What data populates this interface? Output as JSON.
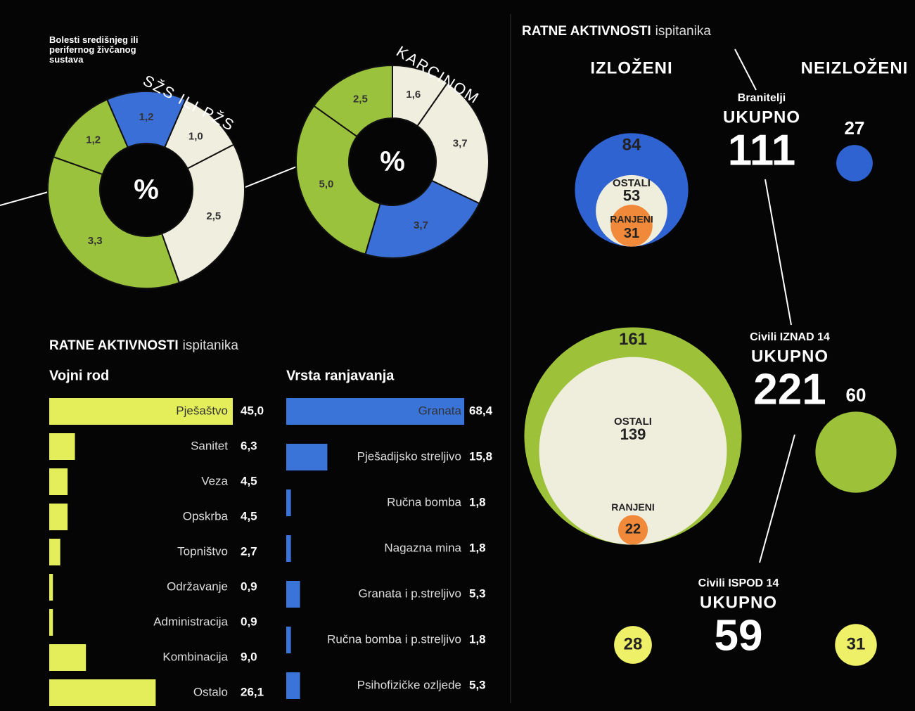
{
  "chart_data": [
    {
      "type": "donut",
      "annotation": "Bolesti središnjeg ili perifernog živčanog sustava",
      "title": "SŽS ILI PŽS",
      "center_label": "%",
      "values": [
        1.2,
        1.0,
        2.5,
        3.3,
        1.2
      ],
      "value_labels": [
        "1,2",
        "1,0",
        "2,5",
        "3,3",
        "1,2"
      ],
      "colors": [
        "#3a6fd8",
        "#f0eedf",
        "#f0eedf",
        "#9bc23c",
        "#9bc23c"
      ]
    },
    {
      "type": "donut",
      "title": "KARCINOM",
      "center_label": "%",
      "values": [
        1.6,
        3.7,
        3.7,
        5.0,
        2.5
      ],
      "value_labels": [
        "1,6",
        "3,7",
        "3,7",
        "5,0",
        "2,5"
      ],
      "colors": [
        "#f0eedf",
        "#f0eedf",
        "#3a6fd8",
        "#9bc23c",
        "#9bc23c"
      ]
    },
    {
      "type": "bar",
      "title": "RATNE AKTIVNOSTI",
      "subtitle": "ispitanika",
      "heading": "Vojni rod",
      "categories": [
        "Pješaštvo",
        "Sanitet",
        "Veza",
        "Opskrba",
        "Topništvo",
        "Održavanje",
        "Administracija",
        "Kombinacija",
        "Ostalo"
      ],
      "values": [
        45.0,
        6.3,
        4.5,
        4.5,
        2.7,
        0.9,
        0.9,
        9.0,
        26.1
      ],
      "value_labels": [
        "45,0",
        "6,3",
        "4,5",
        "4,5",
        "2,7",
        "0,9",
        "0,9",
        "9,0",
        "26,1"
      ],
      "color": "#e4ee5a"
    },
    {
      "type": "bar",
      "heading": "Vrsta ranjavanja",
      "categories": [
        "Granata",
        "Pješadijsko streljivo",
        "Ručna bomba",
        "Nagazna mina",
        "Granata i p.streljivo",
        "Ručna bomba i p.streljivo",
        "Psihofizičke ozljede"
      ],
      "values": [
        68.4,
        15.8,
        1.8,
        1.8,
        5.3,
        1.8,
        5.3
      ],
      "value_labels": [
        "68,4",
        "15,8",
        "1,8",
        "1,8",
        "5,3",
        "1,8",
        "5,3"
      ],
      "color": "#3a74d8"
    },
    {
      "type": "bubble",
      "title": "RATNE AKTIVNOSTI",
      "subtitle": "ispitanika",
      "column_labels": [
        "IZLOŽENI",
        "NEIZLOŽENI"
      ],
      "others_color": "#efeddc",
      "wounded_color": "#f0893a",
      "groups": [
        {
          "name": "Branitelji",
          "total_label": "UKUPNO",
          "total": 111,
          "exposed": 84,
          "others_label": "OSTALI",
          "others": 53,
          "wounded_label": "RANJENI",
          "wounded": 31,
          "unexposed": 27,
          "color": "#2f63d2"
        },
        {
          "name": "Civili IZNAD 14",
          "total_label": "UKUPNO",
          "total": 221,
          "exposed": 161,
          "others_label": "OSTALI",
          "others": 139,
          "wounded_label": "RANJENI",
          "wounded": 22,
          "unexposed": 60,
          "color": "#9dc23a"
        },
        {
          "name": "Civili ISPOD 14",
          "total_label": "UKUPNO",
          "total": 59,
          "exposed": 28,
          "unexposed": 31,
          "color": "#eef068"
        }
      ]
    }
  ]
}
